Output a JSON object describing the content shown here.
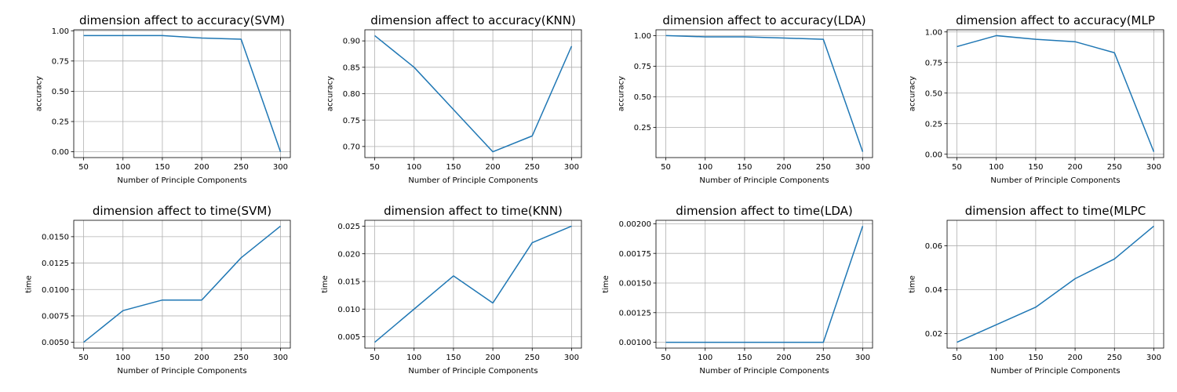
{
  "figure": {
    "background": "#ffffff",
    "line_color": "#1f77b4",
    "grid_color": "#b0b0b0"
  },
  "chart_data": [
    {
      "type": "line",
      "title": "dimension affect to accuracy(SVM)",
      "xlabel": "Number of Principle Components",
      "ylabel": "accuracy",
      "x": [
        50,
        100,
        150,
        200,
        250,
        300
      ],
      "series": [
        {
          "values": [
            0.96,
            0.96,
            0.96,
            0.94,
            0.93,
            0.0
          ]
        }
      ],
      "xlim": [
        37.5,
        312.5
      ],
      "ylim": [
        -0.048,
        1.008
      ],
      "xticks": [
        50,
        100,
        150,
        200,
        250,
        300
      ],
      "yticks": [
        0.0,
        0.25,
        0.5,
        0.75,
        1.0
      ],
      "ytick_labels": [
        "0.00",
        "0.25",
        "0.50",
        "0.75",
        "1.00"
      ],
      "grid": true
    },
    {
      "type": "line",
      "title": "dimension affect to accuracy(KNN)",
      "xlabel": "Number of Principle Components",
      "ylabel": "accuracy",
      "x": [
        50,
        100,
        150,
        200,
        250,
        300
      ],
      "series": [
        {
          "values": [
            0.91,
            0.85,
            0.77,
            0.69,
            0.72,
            0.89
          ]
        }
      ],
      "xlim": [
        37.5,
        312.5
      ],
      "ylim": [
        0.679,
        0.921
      ],
      "xticks": [
        50,
        100,
        150,
        200,
        250,
        300
      ],
      "yticks": [
        0.7,
        0.75,
        0.8,
        0.85,
        0.9
      ],
      "ytick_labels": [
        "0.70",
        "0.75",
        "0.80",
        "0.85",
        "0.90"
      ],
      "grid": true
    },
    {
      "type": "line",
      "title": "dimension affect to accuracy(LDA)",
      "xlabel": "Number of Principle Components",
      "ylabel": "accuracy",
      "x": [
        50,
        100,
        150,
        200,
        250,
        300
      ],
      "series": [
        {
          "values": [
            1.0,
            0.99,
            0.99,
            0.98,
            0.97,
            0.05
          ]
        }
      ],
      "xlim": [
        37.5,
        312.5
      ],
      "ylim": [
        0.0025,
        1.0475
      ],
      "xticks": [
        50,
        100,
        150,
        200,
        250,
        300
      ],
      "yticks": [
        0.25,
        0.5,
        0.75,
        1.0
      ],
      "ytick_labels": [
        "0.25",
        "0.50",
        "0.75",
        "1.00"
      ],
      "grid": true
    },
    {
      "type": "line",
      "title": "dimension affect to accuracy(MLP",
      "xlabel": "Number of Principle Components",
      "ylabel": "accuracy",
      "x": [
        50,
        100,
        150,
        200,
        250,
        300
      ],
      "series": [
        {
          "values": [
            0.88,
            0.97,
            0.94,
            0.92,
            0.83,
            0.02
          ]
        }
      ],
      "xlim": [
        37.5,
        312.5
      ],
      "ylim": [
        -0.0275,
        1.0175
      ],
      "xticks": [
        50,
        100,
        150,
        200,
        250,
        300
      ],
      "yticks": [
        0.0,
        0.25,
        0.5,
        0.75,
        1.0
      ],
      "ytick_labels": [
        "0.00",
        "0.25",
        "0.50",
        "0.75",
        "1.00"
      ],
      "grid": true
    },
    {
      "type": "line",
      "title": "dimension affect to time(SVM)",
      "xlabel": "Number of Principle Components",
      "ylabel": "time",
      "x": [
        50,
        100,
        150,
        200,
        250,
        300
      ],
      "series": [
        {
          "values": [
            0.005,
            0.008,
            0.009,
            0.009,
            0.013,
            0.016
          ]
        }
      ],
      "xlim": [
        37.5,
        312.5
      ],
      "ylim": [
        0.00445,
        0.01655
      ],
      "xticks": [
        50,
        100,
        150,
        200,
        250,
        300
      ],
      "yticks": [
        0.005,
        0.0075,
        0.01,
        0.0125,
        0.015
      ],
      "ytick_labels": [
        "0.0050",
        "0.0075",
        "0.0100",
        "0.0125",
        "0.0150"
      ],
      "grid": true
    },
    {
      "type": "line",
      "title": "dimension affect to time(KNN)",
      "xlabel": "Number of Principle Components",
      "ylabel": "time",
      "x": [
        50,
        100,
        150,
        200,
        250,
        300
      ],
      "series": [
        {
          "values": [
            0.004,
            0.01,
            0.016,
            0.0111,
            0.022,
            0.025
          ]
        }
      ],
      "xlim": [
        37.5,
        312.5
      ],
      "ylim": [
        0.00295,
        0.02605
      ],
      "xticks": [
        50,
        100,
        150,
        200,
        250,
        300
      ],
      "yticks": [
        0.005,
        0.01,
        0.015,
        0.02,
        0.025
      ],
      "ytick_labels": [
        "0.005",
        "0.010",
        "0.015",
        "0.020",
        "0.025"
      ],
      "grid": true
    },
    {
      "type": "line",
      "title": "dimension affect to time(LDA)",
      "xlabel": "Number of Principle Components",
      "ylabel": "time",
      "x": [
        50,
        100,
        150,
        200,
        250,
        300
      ],
      "series": [
        {
          "values": [
            0.001,
            0.001,
            0.001,
            0.001,
            0.001,
            0.00198
          ]
        }
      ],
      "xlim": [
        37.5,
        312.5
      ],
      "ylim": [
        0.000951,
        0.002029
      ],
      "xticks": [
        50,
        100,
        150,
        200,
        250,
        300
      ],
      "yticks": [
        0.001,
        0.00125,
        0.0015,
        0.00175,
        0.002
      ],
      "ytick_labels": [
        "0.00100",
        "0.00125",
        "0.00150",
        "0.00175",
        "0.00200"
      ],
      "grid": true
    },
    {
      "type": "line",
      "title": "dimension affect to time(MLPC",
      "xlabel": "Number of Principle Components",
      "ylabel": "time",
      "x": [
        50,
        100,
        150,
        200,
        250,
        300
      ],
      "series": [
        {
          "values": [
            0.016,
            0.024,
            0.032,
            0.045,
            0.054,
            0.069
          ]
        }
      ],
      "xlim": [
        37.5,
        312.5
      ],
      "ylim": [
        0.01335,
        0.07165
      ],
      "xticks": [
        50,
        100,
        150,
        200,
        250,
        300
      ],
      "yticks": [
        0.02,
        0.04,
        0.06
      ],
      "ytick_labels": [
        "0.02",
        "0.04",
        "0.06"
      ],
      "grid": true
    }
  ]
}
